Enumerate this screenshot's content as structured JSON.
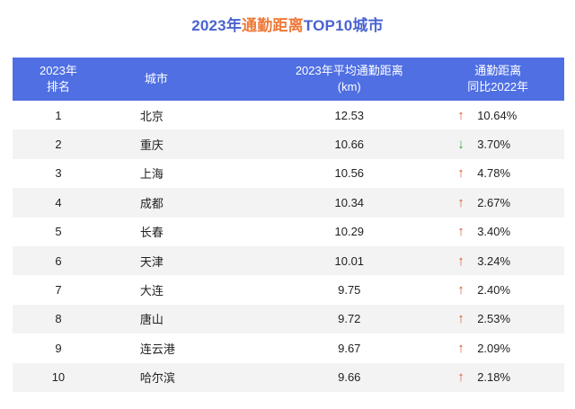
{
  "title": {
    "prefix": "2023年",
    "highlight": "通勤距离",
    "suffix": "TOP10城市"
  },
  "colors": {
    "header_bg": "#4f6fe3",
    "title_blue": "#4a63d0",
    "title_orange": "#ee7a3a",
    "up": "#d9573a",
    "down": "#3fa63f",
    "stripe": "#f3f3f3"
  },
  "headers": [
    {
      "line1": "2023年",
      "line2": "排名"
    },
    {
      "line1": "城市",
      "line2": ""
    },
    {
      "line1": "2023年平均通勤距离",
      "line2": "(km)"
    },
    {
      "line1": "通勤距离",
      "line2": "同比2022年"
    }
  ],
  "rows": [
    {
      "rank": "1",
      "city": "北京",
      "distance": "12.53",
      "arrow": "↑",
      "dir": "up",
      "change": "10.64%"
    },
    {
      "rank": "2",
      "city": "重庆",
      "distance": "10.66",
      "arrow": "↓",
      "dir": "down",
      "change": "3.70%"
    },
    {
      "rank": "3",
      "city": "上海",
      "distance": "10.56",
      "arrow": "↑",
      "dir": "up",
      "change": "4.78%"
    },
    {
      "rank": "4",
      "city": "成都",
      "distance": "10.34",
      "arrow": "↑",
      "dir": "up",
      "change": "2.67%"
    },
    {
      "rank": "5",
      "city": "长春",
      "distance": "10.29",
      "arrow": "↑",
      "dir": "up",
      "change": "3.40%"
    },
    {
      "rank": "6",
      "city": "天津",
      "distance": "10.01",
      "arrow": "↑",
      "dir": "up",
      "change": "3.24%"
    },
    {
      "rank": "7",
      "city": "大连",
      "distance": "9.75",
      "arrow": "↑",
      "dir": "up",
      "change": "2.40%"
    },
    {
      "rank": "8",
      "city": "唐山",
      "distance": "9.72",
      "arrow": "↑",
      "dir": "up",
      "change": "2.53%"
    },
    {
      "rank": "9",
      "city": "连云港",
      "distance": "9.67",
      "arrow": "↑",
      "dir": "up",
      "change": "2.09%"
    },
    {
      "rank": "10",
      "city": "哈尔滨",
      "distance": "9.66",
      "arrow": "↑",
      "dir": "up",
      "change": "2.18%"
    }
  ],
  "chart_data": {
    "type": "table",
    "title": "2023年通勤距离TOP10城市",
    "columns": [
      "2023年排名",
      "城市",
      "2023年平均通勤距离(km)",
      "通勤距离同比2022年"
    ],
    "categories": [
      "北京",
      "重庆",
      "上海",
      "成都",
      "长春",
      "天津",
      "大连",
      "唐山",
      "连云港",
      "哈尔滨"
    ],
    "series": [
      {
        "name": "2023年平均通勤距离(km)",
        "values": [
          12.53,
          10.66,
          10.56,
          10.34,
          10.29,
          10.01,
          9.75,
          9.72,
          9.67,
          9.66
        ]
      },
      {
        "name": "通勤距离同比2022年(%)",
        "values": [
          10.64,
          -3.7,
          4.78,
          2.67,
          3.4,
          3.24,
          2.4,
          2.53,
          2.09,
          2.18
        ]
      }
    ]
  }
}
